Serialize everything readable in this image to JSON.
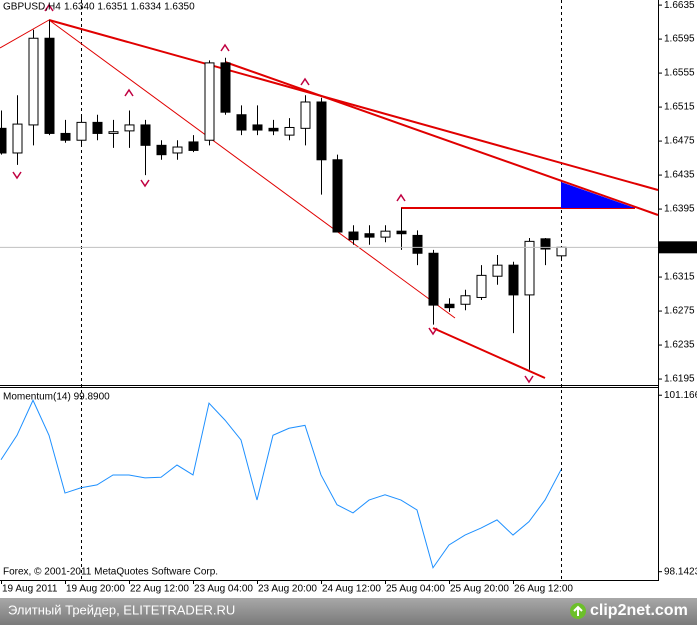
{
  "chart_data": [
    {
      "type": "candlestick",
      "title": "GBPUSD,H4",
      "subtitle": "1.6340 1.6351 1.6334 1.6350",
      "categories": [
        "19 Aug 2011",
        null,
        null,
        null,
        "19 Aug 20:00",
        null,
        null,
        null,
        "22 Aug 12:00",
        null,
        null,
        null,
        "23 Aug 04:00",
        null,
        null,
        null,
        "23 Aug 20:00",
        null,
        null,
        null,
        "24 Aug 12:00",
        null,
        null,
        null,
        "25 Aug 04:00",
        null,
        null,
        null,
        "25 Aug 20:00",
        null,
        null,
        null,
        "26 Aug 12:00",
        null,
        null,
        null
      ],
      "open": [
        1.649,
        1.6461,
        1.6494,
        1.6596,
        1.6484,
        1.6476,
        1.6497,
        1.6484,
        1.6487,
        1.6494,
        1.647,
        1.6461,
        1.6474,
        1.6476,
        1.6567,
        1.6506,
        1.6494,
        1.649,
        1.6482,
        1.649,
        1.6521,
        1.6453,
        1.6368,
        1.6366,
        1.6362,
        1.6369,
        1.6364,
        1.6343,
        1.6283,
        1.6283,
        1.6291,
        1.6316,
        1.6329,
        1.6294,
        1.636,
        1.634
      ],
      "high": [
        1.6511,
        1.6529,
        1.6606,
        1.6617,
        1.65,
        1.6506,
        1.6506,
        1.65,
        1.6511,
        1.65,
        1.6476,
        1.6476,
        1.6482,
        1.657,
        1.6573,
        1.6517,
        1.6517,
        1.65,
        1.6502,
        1.6529,
        1.6526,
        1.6459,
        1.6376,
        1.6376,
        1.6376,
        1.6396,
        1.637,
        1.6347,
        1.629,
        1.63,
        1.6329,
        1.6341,
        1.6333,
        1.6361,
        1.6361,
        1.6351
      ],
      "low": [
        1.6459,
        1.6447,
        1.647,
        1.6482,
        1.6473,
        1.647,
        1.6476,
        1.6467,
        1.6467,
        1.6435,
        1.6453,
        1.6453,
        1.6462,
        1.647,
        1.6506,
        1.6482,
        1.6482,
        1.6482,
        1.6476,
        1.647,
        1.6412,
        1.6368,
        1.6353,
        1.6353,
        1.6356,
        1.6347,
        1.6329,
        1.6259,
        1.6274,
        1.6276,
        1.6288,
        1.6306,
        1.6249,
        1.6206,
        1.6329,
        1.6334
      ],
      "close": [
        1.6461,
        1.6495,
        1.6596,
        1.6484,
        1.6476,
        1.6497,
        1.6484,
        1.6486,
        1.6494,
        1.647,
        1.6459,
        1.6468,
        1.6464,
        1.6567,
        1.6509,
        1.6488,
        1.6488,
        1.6487,
        1.6491,
        1.6521,
        1.6453,
        1.6368,
        1.6359,
        1.6362,
        1.6369,
        1.6366,
        1.6343,
        1.6282,
        1.6279,
        1.6293,
        1.6317,
        1.6329,
        1.6294,
        1.6357,
        1.6348,
        1.635
      ],
      "up_color": "#ffffff",
      "down_color": "#000000",
      "ylim": [
        1.6188,
        1.6641
      ],
      "yticks": [
        1.6635,
        1.6595,
        1.6555,
        1.6515,
        1.6475,
        1.6435,
        1.6395,
        1.6315,
        1.6275,
        1.6235,
        1.6195
      ],
      "current_price": {
        "value": 1.635,
        "label": "1.6350"
      }
    },
    {
      "type": "line",
      "title": "Momentum(14) 99.8900",
      "values": [
        100.06,
        100.48,
        101.08,
        100.48,
        99.49,
        99.58,
        99.63,
        99.8,
        99.8,
        99.75,
        99.76,
        99.97,
        99.8,
        101.03,
        100.74,
        100.4,
        99.37,
        100.48,
        100.6,
        100.65,
        99.8,
        99.29,
        99.15,
        99.37,
        99.46,
        99.37,
        99.2,
        98.21,
        98.6,
        98.77,
        98.89,
        99.03,
        98.77,
        99.0,
        99.37,
        99.89
      ],
      "color": "#1e90ff",
      "ylim": [
        98.0,
        101.29
      ],
      "yticks": [
        101.1663,
        98.1423
      ]
    }
  ],
  "copyright": "Forex, © 2001-2011 MetaQuotes Software Corp.",
  "footer": {
    "caption": "Элитный Трейдер, ELITETRADER.RU",
    "logo": "clip2net.com"
  }
}
